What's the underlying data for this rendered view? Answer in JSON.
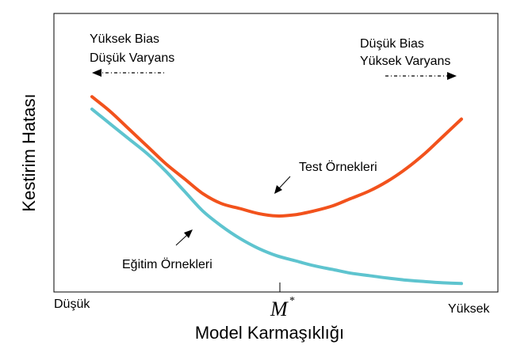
{
  "chart_data": {
    "type": "line",
    "xlabel": "Model Karmaşıklığı",
    "ylabel": "Kestirim Hatası",
    "x_tick_labels": {
      "left": "Düşük",
      "center": "M",
      "center_sup": "*",
      "right": "Yüksek"
    },
    "annotations": {
      "left_top": [
        "Yüksek Bias",
        "Düşük Varyans"
      ],
      "right_top": [
        "Düşük Bias",
        "Yüksek Varyans"
      ],
      "test_label": "Test Örnekleri",
      "train_label": "Eğitim Örnekleri"
    },
    "xlim": [
      0,
      100
    ],
    "ylim": [
      0,
      100
    ],
    "series": [
      {
        "name": "Test Örnekleri",
        "color": "#f2521c",
        "x": [
          0,
          5,
          10,
          15,
          20,
          25,
          30,
          35,
          40,
          45,
          50,
          55,
          60,
          65,
          70,
          75,
          80,
          85,
          90,
          95,
          100
        ],
        "y": [
          77,
          71,
          64,
          57,
          50,
          44,
          38,
          34,
          32,
          30,
          29,
          29.5,
          31,
          33,
          36,
          39,
          43,
          48,
          54,
          61,
          68
        ]
      },
      {
        "name": "Eğitim Örnekleri",
        "color": "#5ec4cf",
        "x": [
          0,
          5,
          10,
          15,
          20,
          25,
          30,
          35,
          40,
          45,
          50,
          55,
          60,
          65,
          70,
          75,
          80,
          85,
          90,
          95,
          100
        ],
        "y": [
          72,
          66,
          60,
          54,
          47,
          39,
          31,
          25,
          20,
          16,
          13,
          11,
          9,
          7.5,
          6,
          5,
          4,
          3.2,
          2.6,
          2.1,
          1.8
        ]
      }
    ]
  }
}
